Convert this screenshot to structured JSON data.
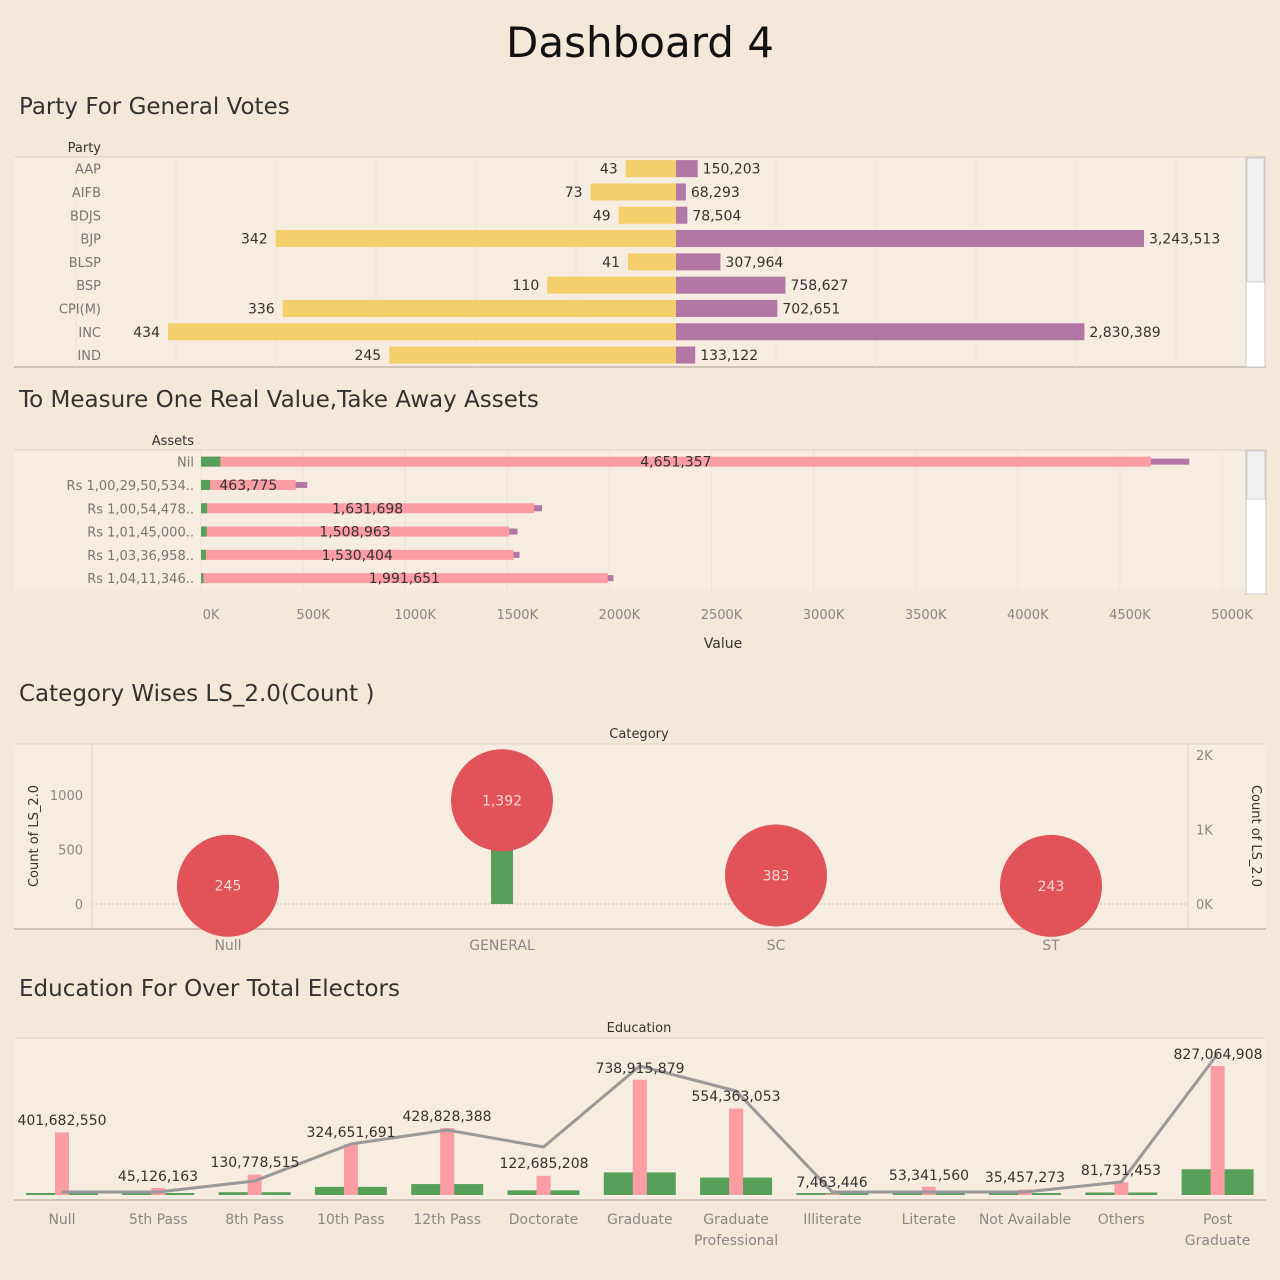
{
  "title": "Dashboard 4",
  "sections": {
    "party": "Party For General Votes",
    "assets": "To Measure One Real Value,Take Away Assets",
    "category": "Category Wises LS_2.0(Count )",
    "education": "Education For Over Total Electors"
  },
  "colors": {
    "background": "#f4e8d8",
    "yellow": "#f4cf6b",
    "purple": "#b377a5",
    "pink": "#fc9da4",
    "green": "#57a05a",
    "red": "#e15259",
    "gray_line": "#999999"
  },
  "chart_data": [
    {
      "type": "bar",
      "name": "party",
      "row_header": "Party",
      "categories": [
        "AAP",
        "AIFB",
        "BDJS",
        "BJP",
        "BLSP",
        "BSP",
        "CPI(M)",
        "INC",
        "IND"
      ],
      "series": [
        {
          "values": [
            43,
            73,
            49,
            342,
            41,
            110,
            336,
            434,
            245
          ]
        },
        {
          "values": [
            150203,
            68293,
            78504,
            3243513,
            307964,
            758627,
            702651,
            2830389,
            133122
          ]
        }
      ],
      "labels_left": [
        "43",
        "73",
        "49",
        "342",
        "41",
        "110",
        "336",
        "434",
        "245"
      ],
      "labels_right": [
        "150,203",
        "68,293",
        "78,504",
        "3,243,513",
        "307,964",
        "758,627",
        "702,651",
        "2,830,389",
        "133,122"
      ]
    },
    {
      "type": "bar",
      "name": "assets",
      "row_header": "Assets",
      "xlabel": "Value",
      "categories": [
        "Nil",
        "Rs 1,00,29,50,534..",
        "Rs 1,00,54,478..",
        "Rs 1,01,45,000..",
        "Rs 1,03,36,958..",
        "Rs 1,04,11,346.."
      ],
      "values": [
        4651357,
        463775,
        1631698,
        1508963,
        1530404,
        1991651
      ],
      "value_labels": [
        "4,651,357",
        "463,775",
        "1,631,698",
        "1,508,963",
        "1,530,404",
        "1,991,651"
      ],
      "green_values": [
        95000,
        45000,
        30000,
        28000,
        25000,
        12000
      ],
      "purple_values": [
        4840000,
        520000,
        1670000,
        1550000,
        1560000,
        2020000
      ],
      "xlim": [
        0,
        5000000
      ],
      "x_ticks": [
        "0K",
        "500K",
        "1000K",
        "1500K",
        "2000K",
        "2500K",
        "3000K",
        "3500K",
        "4000K",
        "4500K",
        "5000K"
      ]
    },
    {
      "type": "scatter",
      "name": "category",
      "col_header": "Category",
      "ylabel": "Count of LS_2.0",
      "ylabel_right": "Count of LS_2.0",
      "categories": [
        "Null",
        "GENERAL",
        "SC",
        "ST"
      ],
      "values": [
        245,
        1392,
        383,
        243
      ],
      "value_labels": [
        "245",
        "1,392",
        "383",
        "243"
      ],
      "bar_values": [
        0,
        1080,
        0,
        0
      ],
      "ylim_left": [
        0,
        1150
      ],
      "ylim_right": [
        0,
        2300
      ],
      "left_ticks": [
        "0",
        "500",
        "1000"
      ],
      "right_ticks": [
        "0K",
        "1K",
        "2K"
      ]
    },
    {
      "type": "bar",
      "name": "education",
      "col_header": "Education",
      "categories": [
        "Null",
        "5th Pass",
        "8th Pass",
        "10th Pass",
        "12th Pass",
        "Doctorate",
        "Graduate",
        "Graduate Professional",
        "Illiterate",
        "Literate",
        "Not Available",
        "Others",
        "Post Graduate"
      ],
      "category_lines": [
        [
          "Null"
        ],
        [
          "5th Pass"
        ],
        [
          "8th Pass"
        ],
        [
          "10th Pass"
        ],
        [
          "12th Pass"
        ],
        [
          "Doctorate"
        ],
        [
          "Graduate"
        ],
        [
          "Graduate",
          "Professional"
        ],
        [
          "Illiterate"
        ],
        [
          "Literate"
        ],
        [
          "Not Available"
        ],
        [
          "Others"
        ],
        [
          "Post",
          "Graduate"
        ]
      ],
      "series": [
        {
          "values": [
            401682550,
            45126163,
            130778515,
            324651691,
            428828388,
            122685208,
            738915879,
            554363053,
            7463446,
            53341560,
            35457273,
            81731453,
            827064908
          ]
        }
      ],
      "value_labels": [
        "401,682,550",
        "45,126,163",
        "130,778,515",
        "324,651,691",
        "428,828,388",
        "122,685,208",
        "738,915,879",
        "554,363,053",
        "7,463,446",
        "53,341,560",
        "35,457,273",
        "81,731,453",
        "827,064,908"
      ],
      "green_values": [
        8000000,
        12000000,
        18000000,
        52000000,
        70000000,
        30000000,
        145000000,
        112000000,
        4000000,
        10000000,
        6000000,
        16000000,
        165000000
      ],
      "ylim": [
        0,
        900000000
      ]
    }
  ]
}
